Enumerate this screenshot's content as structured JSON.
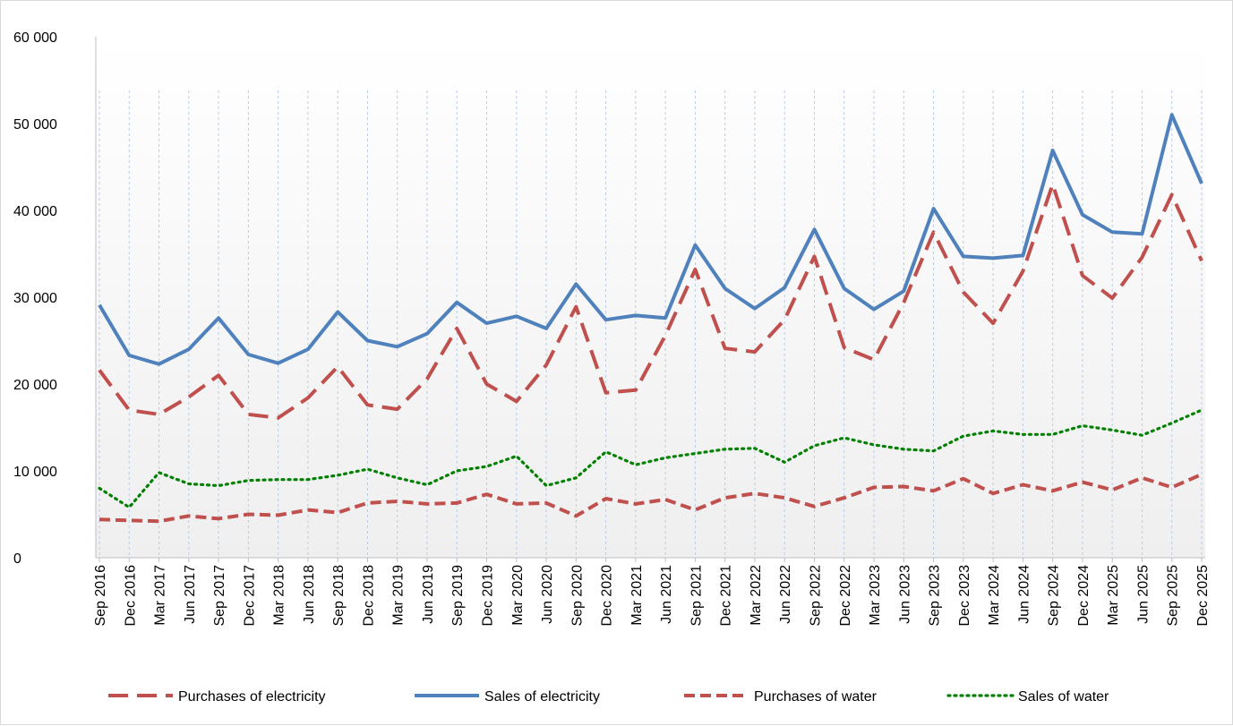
{
  "chart_data": {
    "type": "line",
    "title": "",
    "xlabel": "",
    "ylabel": "",
    "ylim": [
      0,
      60000
    ],
    "yticks": [
      0,
      10000,
      20000,
      30000,
      40000,
      50000,
      60000
    ],
    "ytick_labels": [
      "0",
      "10 000",
      "20 000",
      "30 000",
      "40 000",
      "50 000",
      "60 000"
    ],
    "grid": "vertical dashed lines at each category",
    "legend_position": "bottom",
    "categories": [
      "Sep 2016",
      "Dec 2016",
      "Mar 2017",
      "Jun 2017",
      "Sep 2017",
      "Dec 2017",
      "Mar 2018",
      "Jun 2018",
      "Sep 2018",
      "Dec 2018",
      "Mar 2019",
      "Jun 2019",
      "Sep 2019",
      "Dec 2019",
      "Mar 2020",
      "Jun 2020",
      "Sep 2020",
      "Dec 2020",
      "Mar 2021",
      "Jun 2021",
      "Sep 2021",
      "Dec 2021",
      "Mar 2022",
      "Jun 2022",
      "Sep 2022",
      "Dec 2022",
      "Mar 2023",
      "Jun 2023",
      "Sep 2023",
      "Dec 2023",
      "Mar 2024",
      "Jun 2024",
      "Sep 2024",
      "Dec 2024",
      "Mar 2025",
      "Jun 2025",
      "Sep 2025",
      "Dec 2025"
    ],
    "series": [
      {
        "name": "Purchases of electricity",
        "color": "#c0504d",
        "style": "long-dash",
        "values": [
          21600,
          17000,
          16500,
          18500,
          21000,
          16500,
          16100,
          18400,
          22000,
          17600,
          17100,
          20600,
          26400,
          20000,
          18000,
          22200,
          28900,
          19000,
          19300,
          25600,
          33200,
          24100,
          23700,
          27400,
          34700,
          24200,
          22800,
          29400,
          37500,
          30600,
          27000,
          33000,
          43000,
          32500,
          29900,
          34600,
          41800,
          34200
        ]
      },
      {
        "name": "Sales of electricity",
        "color": "#4f81bd",
        "style": "solid",
        "values": [
          29100,
          23300,
          22300,
          24000,
          27600,
          23400,
          22400,
          24000,
          28300,
          25000,
          24300,
          25800,
          29400,
          27000,
          27800,
          26400,
          31500,
          27400,
          27900,
          27600,
          36000,
          31000,
          28700,
          31100,
          37800,
          31000,
          28600,
          30700,
          40200,
          34700,
          34500,
          34800,
          46900,
          39500,
          37500,
          37300,
          51000,
          43100
        ]
      },
      {
        "name": "Purchases of water",
        "color": "#c0504d",
        "style": "short-dash",
        "values": [
          4400,
          4300,
          4200,
          4800,
          4500,
          5000,
          4900,
          5500,
          5200,
          6300,
          6500,
          6200,
          6300,
          7300,
          6200,
          6300,
          4800,
          6800,
          6200,
          6700,
          5500,
          6900,
          7400,
          6900,
          5900,
          6900,
          8100,
          8200,
          7700,
          9100,
          7400,
          8400,
          7700,
          8700,
          7800,
          9200,
          8100,
          9600
        ]
      },
      {
        "name": "Sales of water",
        "color": "#008000",
        "style": "dotted",
        "values": [
          8000,
          5800,
          9800,
          8500,
          8300,
          8900,
          9000,
          9000,
          9500,
          10200,
          9200,
          8400,
          10000,
          10500,
          11700,
          8300,
          9200,
          12200,
          10700,
          11500,
          12000,
          12500,
          12600,
          11000,
          12900,
          13800,
          13000,
          12500,
          12300,
          14000,
          14600,
          14200,
          14200,
          15200,
          14700,
          14100,
          15500,
          17000
        ]
      }
    ]
  }
}
